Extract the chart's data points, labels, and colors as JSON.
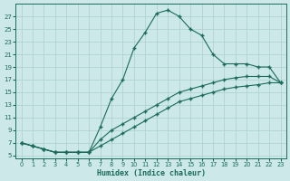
{
  "xlabel": "Humidex (Indice chaleur)",
  "bg_color": "#cce8e8",
  "line_color": "#1a6b5a",
  "grid_color": "#aacfcf",
  "x_hours": [
    0,
    1,
    2,
    3,
    4,
    5,
    6,
    7,
    8,
    9,
    10,
    11,
    12,
    13,
    14,
    15,
    16,
    17,
    18,
    19,
    20,
    21,
    22,
    23
  ],
  "line1_y": [
    7,
    6.5,
    6,
    5.5,
    5.5,
    5.5,
    5.5,
    9.5,
    14,
    17,
    22,
    24.5,
    27.5,
    28,
    27,
    25,
    24,
    21,
    19.5,
    19.5,
    19.5,
    19,
    19,
    16.5
  ],
  "line2_y": [
    7,
    6.5,
    6,
    5.5,
    5.5,
    5.5,
    5.5,
    7.5,
    9,
    10,
    11,
    12,
    13,
    14,
    15,
    15.5,
    16,
    16.5,
    17,
    17.3,
    17.5,
    17.5,
    17.5,
    16.5
  ],
  "line3_y": [
    7,
    6.5,
    6,
    5.5,
    5.5,
    5.5,
    5.5,
    6.5,
    7.5,
    8.5,
    9.5,
    10.5,
    11.5,
    12.5,
    13.5,
    14,
    14.5,
    15,
    15.5,
    15.8,
    16,
    16.2,
    16.5,
    16.5
  ],
  "xlim": [
    -0.5,
    23.5
  ],
  "ylim": [
    4.5,
    29
  ],
  "yticks": [
    5,
    7,
    9,
    11,
    13,
    15,
    17,
    19,
    21,
    23,
    25,
    27
  ],
  "xticks": [
    0,
    1,
    2,
    3,
    4,
    5,
    6,
    7,
    8,
    9,
    10,
    11,
    12,
    13,
    14,
    15,
    16,
    17,
    18,
    19,
    20,
    21,
    22,
    23
  ]
}
